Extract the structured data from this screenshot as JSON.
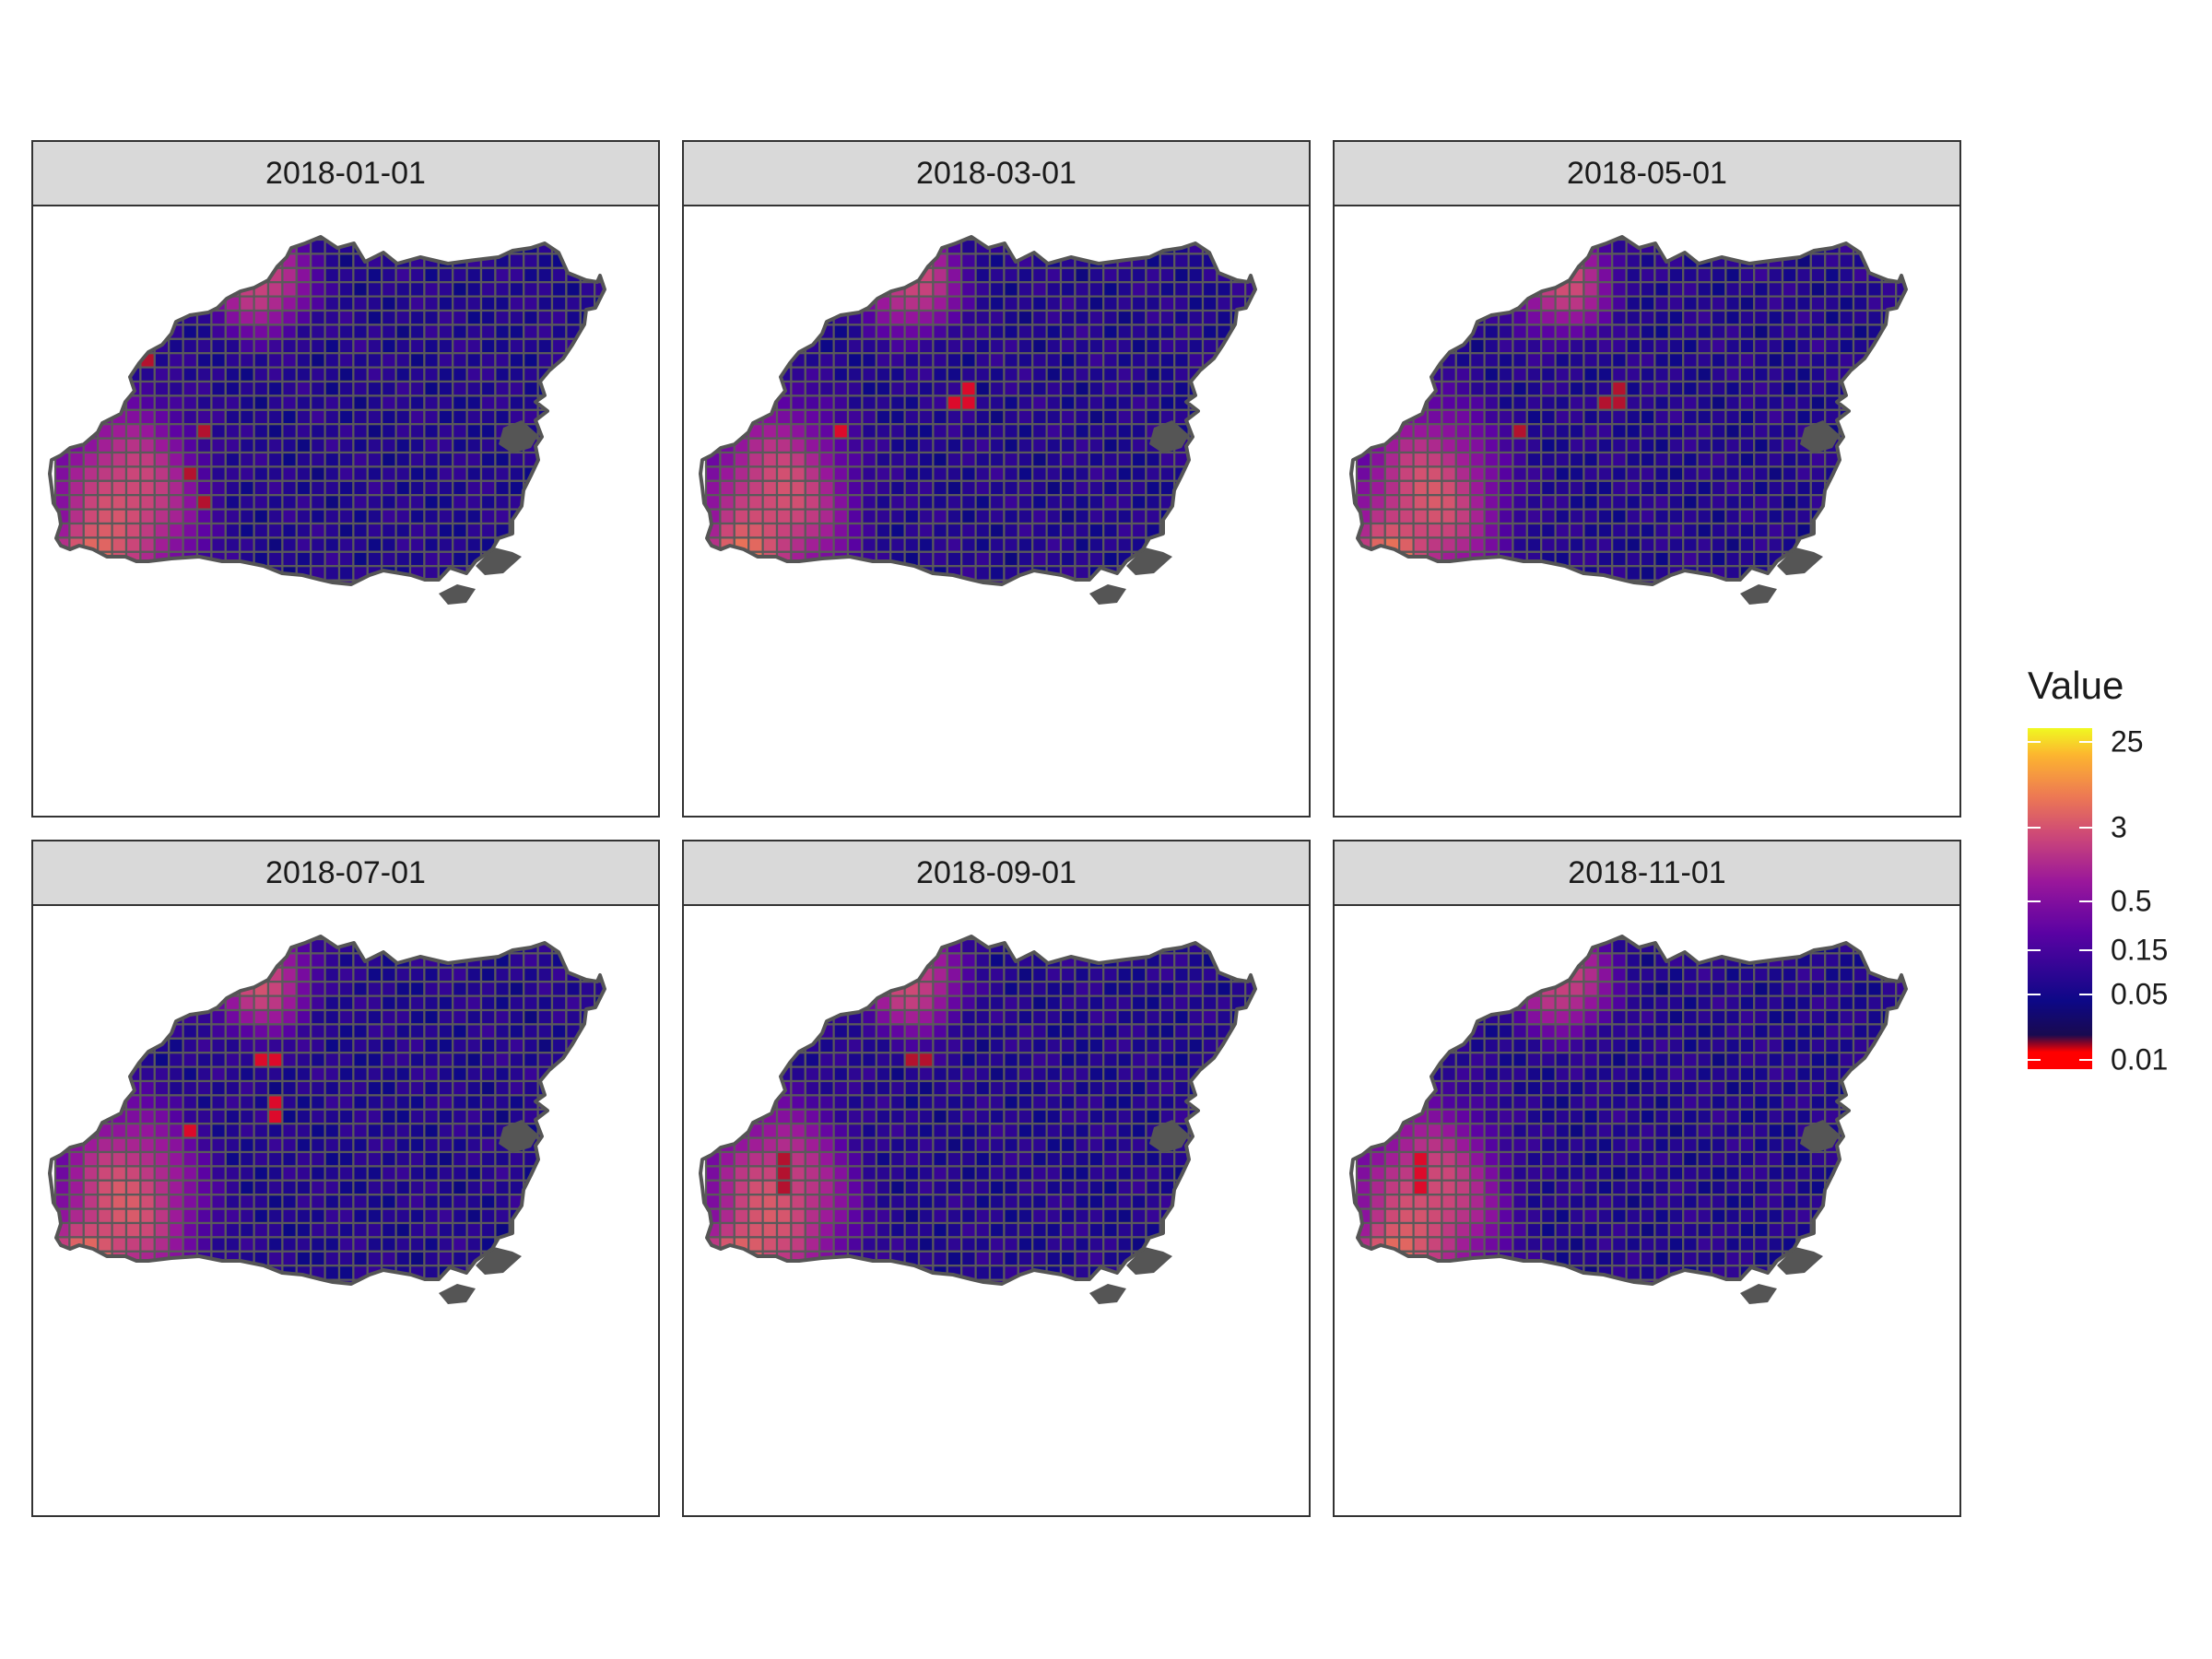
{
  "map": {
    "facets": [
      {
        "label": "2018-01-01",
        "hotspots": [
          [
            6,
            8
          ],
          [
            10,
            13
          ],
          [
            9,
            16
          ],
          [
            10,
            18
          ]
        ]
      },
      {
        "label": "2018-03-01",
        "hotspots": [
          [
            17,
            11
          ],
          [
            18,
            11
          ],
          [
            18,
            10
          ],
          [
            9,
            13
          ]
        ]
      },
      {
        "label": "2018-05-01",
        "hotspots": [
          [
            17,
            11
          ],
          [
            18,
            11
          ],
          [
            18,
            10
          ],
          [
            11,
            13
          ]
        ]
      },
      {
        "label": "2018-07-01",
        "hotspots": [
          [
            14,
            8
          ],
          [
            15,
            8
          ],
          [
            15,
            11
          ],
          [
            15,
            12
          ],
          [
            9,
            13
          ]
        ]
      },
      {
        "label": "2018-09-01",
        "hotspots": [
          [
            5,
            15
          ],
          [
            5,
            16
          ],
          [
            5,
            17
          ],
          [
            14,
            8
          ],
          [
            15,
            8
          ]
        ]
      },
      {
        "label": "2018-11-01",
        "hotspots": [
          [
            4,
            15
          ],
          [
            4,
            16
          ],
          [
            4,
            17
          ]
        ]
      }
    ],
    "legend": {
      "title": "Value",
      "scale": "log",
      "palette": "plasma",
      "low_color": "#ff0000",
      "mid_low_color": "#0d0887",
      "high_color": "#f0f921",
      "breaks": [
        {
          "value": 25,
          "label": "25"
        },
        {
          "value": 3,
          "label": "3"
        },
        {
          "value": 0.5,
          "label": "0.5"
        },
        {
          "value": 0.15,
          "label": "0.15"
        },
        {
          "value": 0.05,
          "label": "0.05"
        },
        {
          "value": 0.01,
          "label": "0.01"
        }
      ],
      "range": [
        0.008,
        35
      ]
    }
  }
}
